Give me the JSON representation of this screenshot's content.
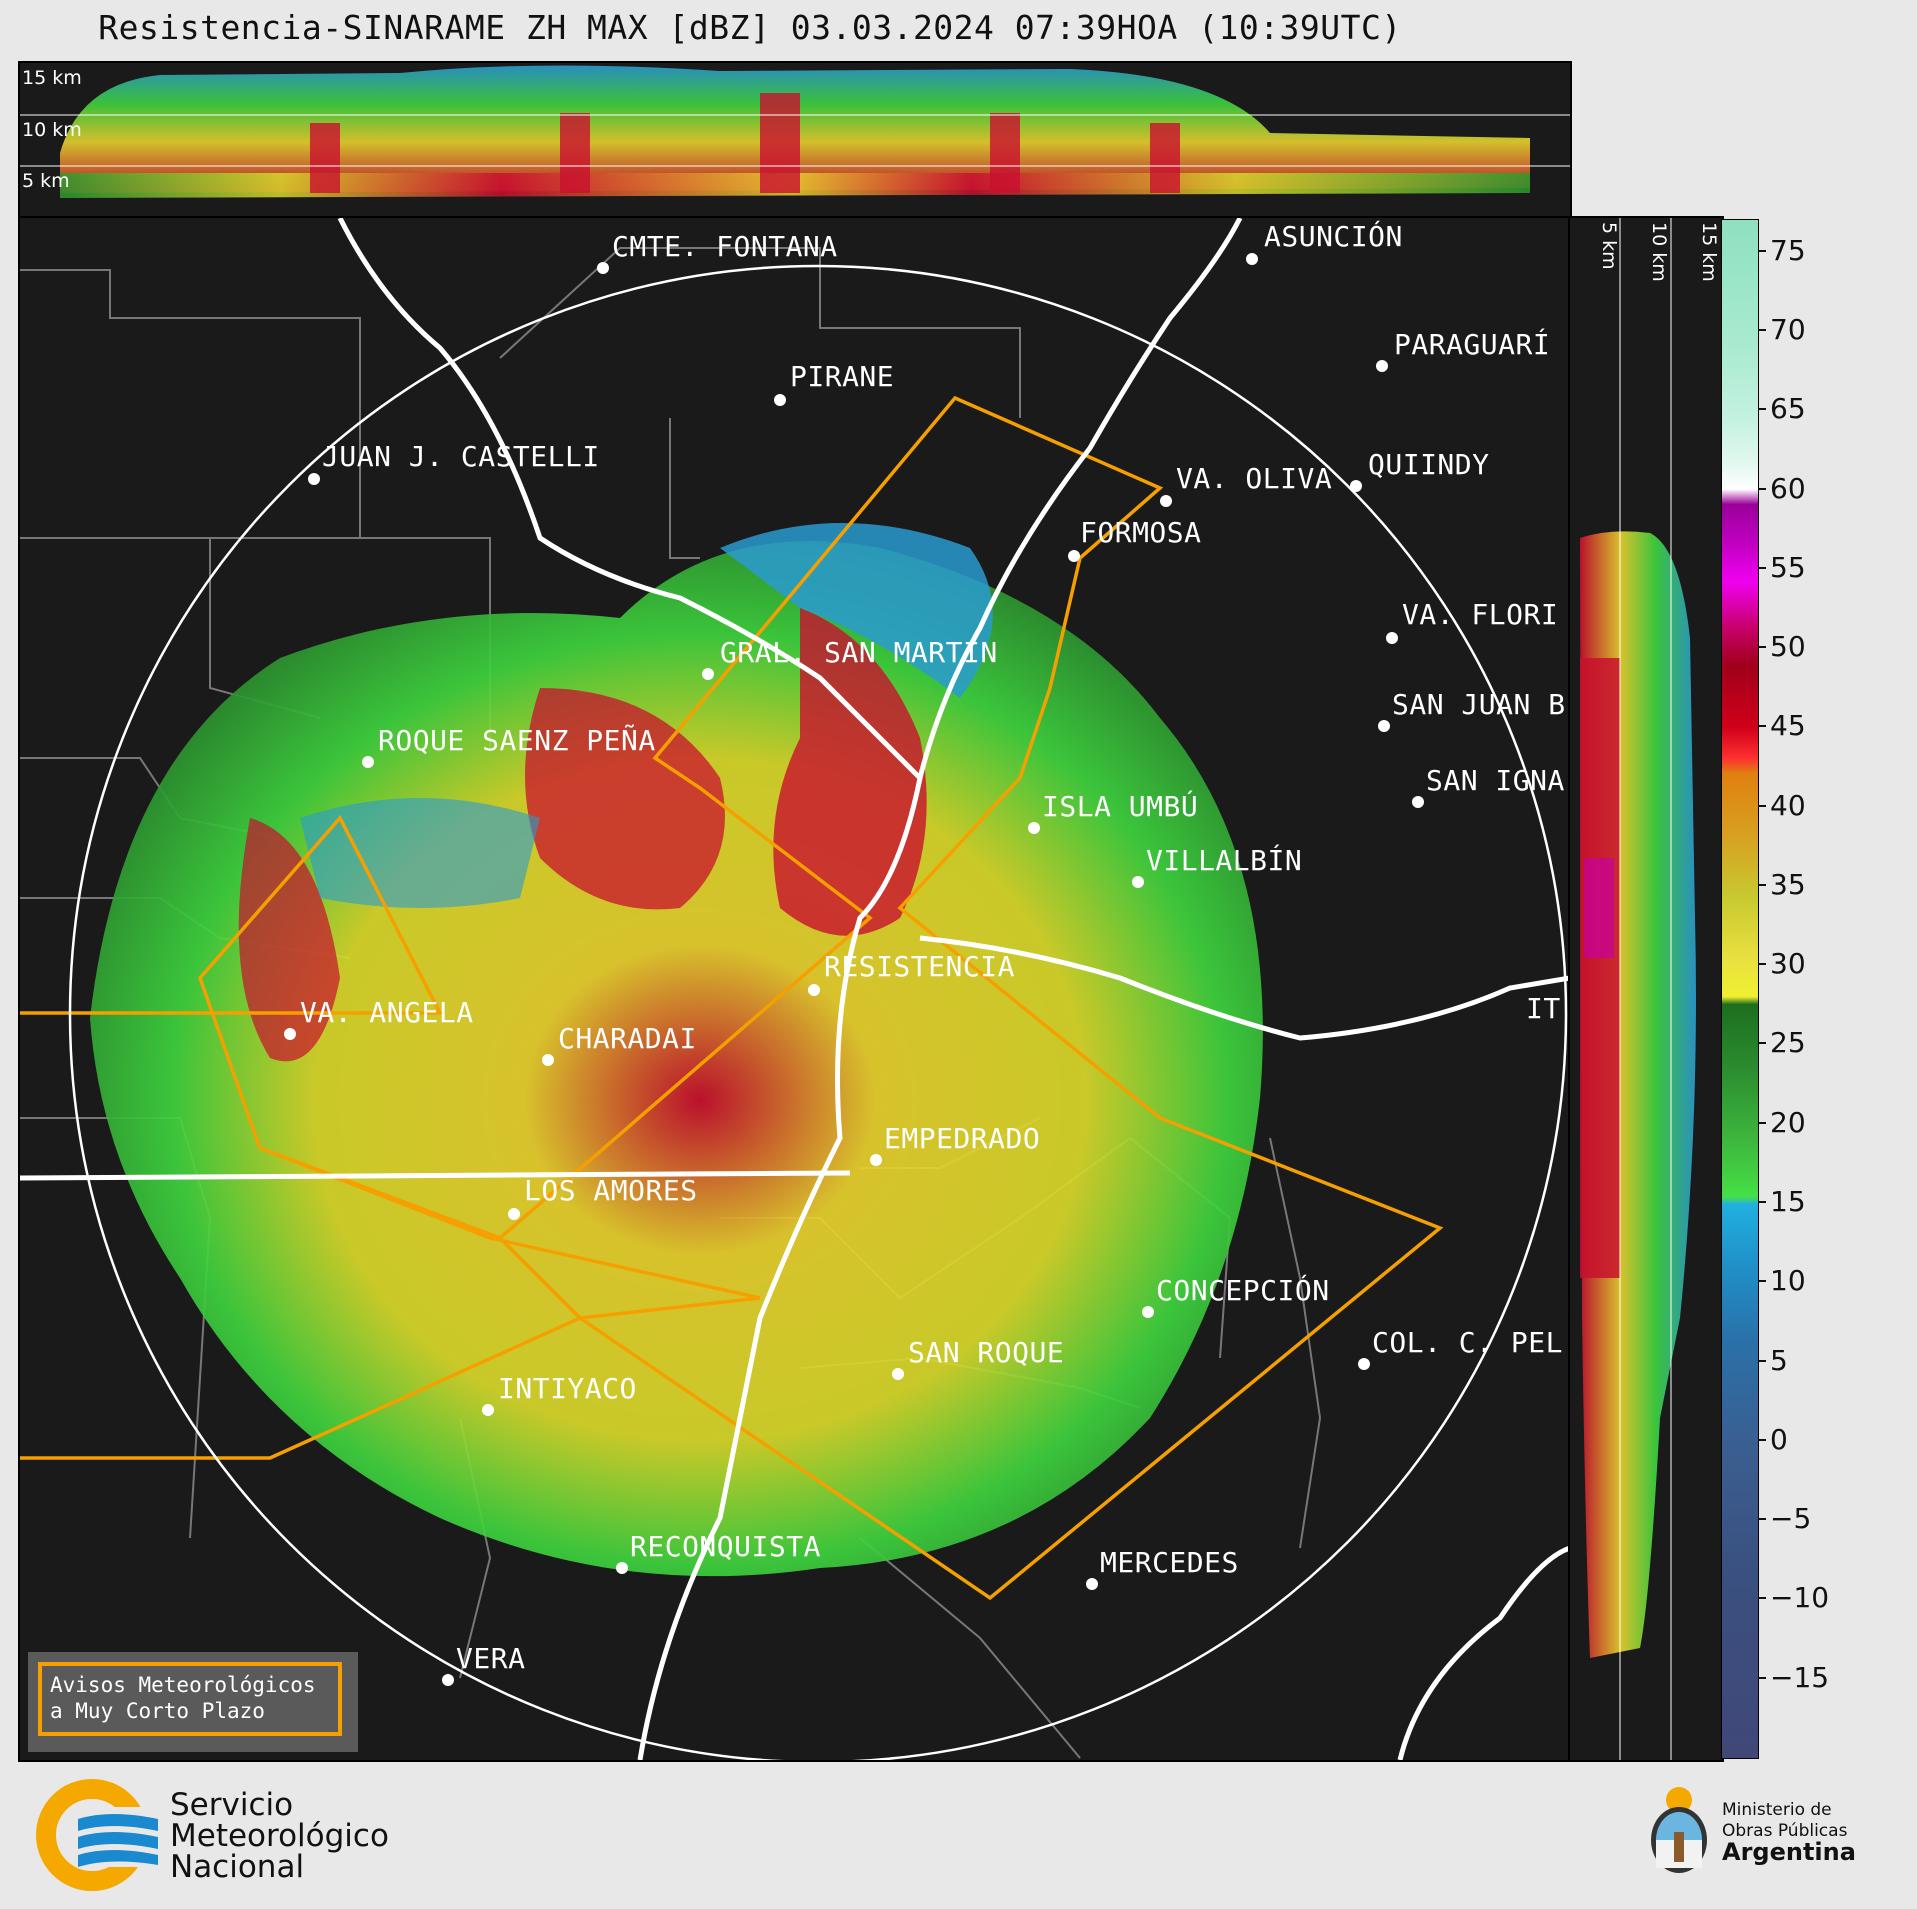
{
  "title": "Resistencia-SINARAME ZH MAX [dBZ] 03.03.2024 07:39HOA (10:39UTC)",
  "height_labels_top": [
    "15 km",
    "10 km",
    "5 km"
  ],
  "height_labels_side": [
    "5 km",
    "10 km",
    "15 km"
  ],
  "colorbar": {
    "ticks": [
      "75",
      "70",
      "65",
      "60",
      "55",
      "50",
      "45",
      "40",
      "35",
      "30",
      "25",
      "20",
      "15",
      "10",
      "5",
      "0",
      "−5",
      "−10",
      "−15"
    ],
    "min": -20,
    "max": 77
  },
  "cities": [
    {
      "name": "CMTE. FONTANA",
      "id": "cmte-fontana"
    },
    {
      "name": "ASUNCIÓN",
      "id": "asuncion"
    },
    {
      "name": "PIRANE",
      "id": "pirane"
    },
    {
      "name": "PARAGUARÍ",
      "id": "paraguari"
    },
    {
      "name": "JUAN J. CASTELLI",
      "id": "juan-j-castelli"
    },
    {
      "name": "VA. OLIVA",
      "id": "va-oliva"
    },
    {
      "name": "QUIINDY",
      "id": "quiindy"
    },
    {
      "name": "FORMOSA",
      "id": "formosa"
    },
    {
      "name": "VA. FLORI",
      "id": "va-flori"
    },
    {
      "name": "GRAL. SAN MARTIN",
      "id": "gral-san-martin"
    },
    {
      "name": "SAN JUAN B",
      "id": "san-juan-b"
    },
    {
      "name": "ROQUE SAENZ PEÑA",
      "id": "roque-saenz-pena"
    },
    {
      "name": "SAN IGNA",
      "id": "san-igna"
    },
    {
      "name": "ISLA UMBÚ",
      "id": "isla-umbu"
    },
    {
      "name": "VILLALBÍN",
      "id": "villalbin"
    },
    {
      "name": "RESISTENCIA",
      "id": "resistencia"
    },
    {
      "name": "IT",
      "id": "it"
    },
    {
      "name": "VA. ANGELA",
      "id": "va-angela"
    },
    {
      "name": "CHARADAI",
      "id": "charadai"
    },
    {
      "name": "EMPEDRADO",
      "id": "empedrado"
    },
    {
      "name": "LOS AMORES",
      "id": "los-amores"
    },
    {
      "name": "CONCEPCIÓN",
      "id": "concepcion"
    },
    {
      "name": "COL. C. PEL",
      "id": "col-c-pel"
    },
    {
      "name": "SAN ROQUE",
      "id": "san-roque"
    },
    {
      "name": "INTIYACO",
      "id": "intiyaco"
    },
    {
      "name": "RECONQUISTA",
      "id": "reconquista"
    },
    {
      "name": "MERCEDES",
      "id": "mercedes"
    },
    {
      "name": "VERA",
      "id": "vera"
    }
  ],
  "avisos": {
    "line1": "Avisos Meteorológicos",
    "line2": "a Muy Corto Plazo"
  },
  "smn": {
    "line1": "Servicio",
    "line2": "Meteorológico",
    "line3": "Nacional"
  },
  "ministerio": {
    "line1": "Ministerio de",
    "line2": "Obras Públicas",
    "line3": "Argentina"
  },
  "colors": {
    "ring": "#ffffff",
    "warning_polygon": "#f5a000",
    "background": "#1a1a1a"
  }
}
